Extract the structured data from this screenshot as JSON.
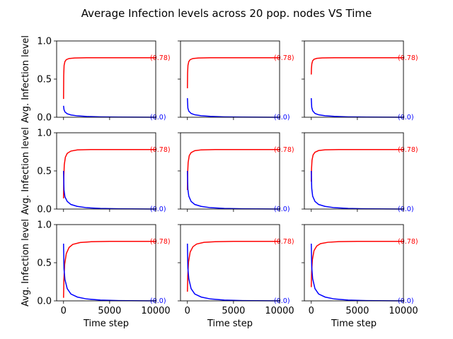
{
  "figure": {
    "title": "Average Infection levels across 20 pop. nodes VS Time"
  },
  "colors": {
    "series_red": "#ff0000",
    "series_blue": "#0000ff",
    "axis": "#000000",
    "background": "#ffffff"
  },
  "axes": {
    "xlabel": "Time step",
    "ylabel": "Avg. Infection level",
    "xlim": [
      -750,
      10000
    ],
    "ylim": [
      0,
      1.0
    ],
    "xticks": [
      0,
      5000,
      10000
    ],
    "xtick_labels": [
      "0",
      "5000",
      "10000"
    ],
    "yticks": [
      0,
      0.5,
      1.0
    ],
    "ytick_labels": [
      "0.0",
      "0.5",
      "1.0"
    ]
  },
  "chart_data": [
    {
      "type": "line",
      "panel": "row1-col1",
      "series": [
        {
          "color": "red",
          "x": [
            0,
            20,
            60,
            150,
            300,
            600,
            1200,
            2500,
            5000,
            10000
          ],
          "values": [
            0.24,
            0.55,
            0.68,
            0.73,
            0.755,
            0.77,
            0.777,
            0.78,
            0.78,
            0.78
          ],
          "end_label": "(0.78)"
        },
        {
          "color": "blue",
          "x": [
            0,
            50,
            150,
            400,
            800,
            1500,
            2500,
            4000,
            6000,
            10000
          ],
          "values": [
            0.15,
            0.1,
            0.07,
            0.045,
            0.03,
            0.018,
            0.01,
            0.005,
            0.002,
            0.0
          ],
          "end_label": "(0.0)"
        }
      ]
    },
    {
      "type": "line",
      "panel": "row1-col2",
      "series": [
        {
          "color": "red",
          "x": [
            0,
            20,
            60,
            150,
            300,
            600,
            1200,
            2500,
            5000,
            10000
          ],
          "values": [
            0.38,
            0.58,
            0.68,
            0.73,
            0.755,
            0.77,
            0.777,
            0.78,
            0.78,
            0.78
          ],
          "end_label": "(0.78)"
        },
        {
          "color": "blue",
          "x": [
            0,
            50,
            150,
            400,
            800,
            1500,
            2500,
            4000,
            6000,
            10000
          ],
          "values": [
            0.25,
            0.12,
            0.08,
            0.05,
            0.032,
            0.02,
            0.011,
            0.005,
            0.002,
            0.0
          ],
          "end_label": "(0.0)"
        }
      ]
    },
    {
      "type": "line",
      "panel": "row1-col3",
      "series": [
        {
          "color": "red",
          "x": [
            0,
            20,
            60,
            150,
            300,
            600,
            1200,
            2500,
            5000,
            10000
          ],
          "values": [
            0.56,
            0.64,
            0.7,
            0.74,
            0.76,
            0.772,
            0.778,
            0.78,
            0.78,
            0.78
          ],
          "end_label": "(0.78)"
        },
        {
          "color": "blue",
          "x": [
            0,
            50,
            150,
            400,
            800,
            1500,
            2500,
            4000,
            6000,
            10000
          ],
          "values": [
            0.25,
            0.13,
            0.085,
            0.05,
            0.032,
            0.02,
            0.011,
            0.005,
            0.002,
            0.0
          ],
          "end_label": "(0.0)"
        }
      ]
    },
    {
      "type": "line",
      "panel": "row2-col1",
      "series": [
        {
          "color": "red",
          "x": [
            0,
            30,
            80,
            200,
            400,
            800,
            1500,
            3000,
            5000,
            10000
          ],
          "values": [
            0.14,
            0.42,
            0.58,
            0.68,
            0.73,
            0.76,
            0.775,
            0.78,
            0.78,
            0.78
          ],
          "end_label": "(0.78)"
        },
        {
          "color": "blue",
          "x": [
            0,
            50,
            150,
            400,
            800,
            1500,
            2500,
            4000,
            6000,
            10000
          ],
          "values": [
            0.5,
            0.25,
            0.16,
            0.1,
            0.06,
            0.035,
            0.018,
            0.008,
            0.003,
            0.0
          ],
          "end_label": "(0.0)"
        }
      ]
    },
    {
      "type": "line",
      "panel": "row2-col2",
      "series": [
        {
          "color": "red",
          "x": [
            0,
            30,
            80,
            200,
            400,
            800,
            1500,
            3000,
            5000,
            10000
          ],
          "values": [
            0.25,
            0.48,
            0.61,
            0.7,
            0.74,
            0.765,
            0.776,
            0.78,
            0.78,
            0.78
          ],
          "end_label": "(0.78)"
        },
        {
          "color": "blue",
          "x": [
            0,
            50,
            150,
            400,
            800,
            1500,
            2500,
            4000,
            6000,
            10000
          ],
          "values": [
            0.5,
            0.26,
            0.17,
            0.1,
            0.06,
            0.035,
            0.018,
            0.008,
            0.003,
            0.0
          ],
          "end_label": "(0.0)"
        }
      ]
    },
    {
      "type": "line",
      "panel": "row2-col3",
      "series": [
        {
          "color": "red",
          "x": [
            0,
            30,
            80,
            200,
            400,
            800,
            1500,
            3000,
            5000,
            10000
          ],
          "values": [
            0.36,
            0.53,
            0.64,
            0.71,
            0.745,
            0.767,
            0.777,
            0.78,
            0.78,
            0.78
          ],
          "end_label": "(0.78)"
        },
        {
          "color": "blue",
          "x": [
            0,
            50,
            150,
            400,
            800,
            1500,
            2500,
            4000,
            6000,
            10000
          ],
          "values": [
            0.5,
            0.27,
            0.17,
            0.1,
            0.06,
            0.035,
            0.018,
            0.008,
            0.003,
            0.0
          ],
          "end_label": "(0.0)"
        }
      ]
    },
    {
      "type": "line",
      "panel": "row3-col1",
      "series": [
        {
          "color": "red",
          "x": [
            0,
            40,
            120,
            300,
            600,
            1000,
            1800,
            3000,
            5000,
            10000
          ],
          "values": [
            0.04,
            0.28,
            0.48,
            0.62,
            0.7,
            0.74,
            0.765,
            0.775,
            0.78,
            0.78
          ],
          "end_label": "(0.78)"
        },
        {
          "color": "blue",
          "x": [
            0,
            50,
            150,
            400,
            800,
            1500,
            2500,
            4000,
            6000,
            10000
          ],
          "values": [
            0.75,
            0.42,
            0.28,
            0.16,
            0.09,
            0.05,
            0.025,
            0.01,
            0.004,
            0.0
          ],
          "end_label": "(0.0)"
        }
      ]
    },
    {
      "type": "line",
      "panel": "row3-col2",
      "series": [
        {
          "color": "red",
          "x": [
            0,
            40,
            120,
            300,
            600,
            1000,
            1800,
            3000,
            5000,
            10000
          ],
          "values": [
            0.12,
            0.33,
            0.51,
            0.64,
            0.71,
            0.745,
            0.767,
            0.776,
            0.78,
            0.78
          ],
          "end_label": "(0.78)"
        },
        {
          "color": "blue",
          "x": [
            0,
            50,
            150,
            400,
            800,
            1500,
            2500,
            4000,
            6000,
            10000
          ],
          "values": [
            0.75,
            0.43,
            0.29,
            0.16,
            0.09,
            0.05,
            0.025,
            0.01,
            0.004,
            0.0
          ],
          "end_label": "(0.0)"
        }
      ]
    },
    {
      "type": "line",
      "panel": "row3-col3",
      "series": [
        {
          "color": "red",
          "x": [
            0,
            40,
            120,
            300,
            600,
            1000,
            1800,
            3000,
            5000,
            10000
          ],
          "values": [
            0.18,
            0.38,
            0.54,
            0.66,
            0.72,
            0.75,
            0.768,
            0.777,
            0.78,
            0.78
          ],
          "end_label": "(0.78)"
        },
        {
          "color": "blue",
          "x": [
            0,
            50,
            150,
            400,
            800,
            1500,
            2500,
            4000,
            6000,
            10000
          ],
          "values": [
            0.75,
            0.44,
            0.29,
            0.16,
            0.09,
            0.05,
            0.025,
            0.01,
            0.004,
            0.0
          ],
          "end_label": "(0.0)"
        }
      ]
    }
  ]
}
